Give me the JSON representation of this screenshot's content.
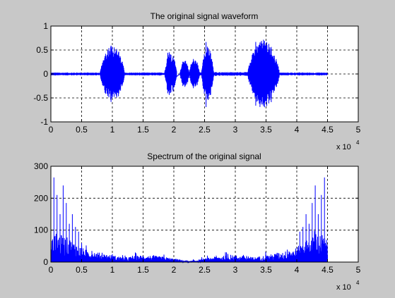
{
  "chart_data": [
    {
      "type": "line",
      "title": "The original signal waveform",
      "xlim": [
        0,
        5
      ],
      "ylim": [
        -1,
        1
      ],
      "x_multiplier_label": "x 10",
      "x_multiplier_exp": "4",
      "xticks": [
        "0",
        "0.5",
        "1",
        "1.5",
        "2",
        "2.5",
        "3",
        "3.5",
        "4",
        "4.5",
        "5"
      ],
      "yticks": [
        "-1",
        "-0.5",
        "0",
        "0.5",
        "1"
      ],
      "grid": true,
      "color": "#0000ff",
      "x_end": 4.5,
      "segments": [
        {
          "type": "hiss",
          "x0": 0.0,
          "x1": 0.8,
          "amp": 0.03
        },
        {
          "type": "burst",
          "x0": 0.8,
          "x1": 1.2,
          "amp": 0.62
        },
        {
          "type": "hiss",
          "x0": 1.2,
          "x1": 1.85,
          "amp": 0.03
        },
        {
          "type": "burst",
          "x0": 1.85,
          "x1": 2.05,
          "amp": 0.45
        },
        {
          "type": "burst",
          "x0": 2.1,
          "x1": 2.25,
          "amp": 0.3
        },
        {
          "type": "burst",
          "x0": 2.25,
          "x1": 2.42,
          "amp": 0.33
        },
        {
          "type": "hiss",
          "x0": 2.42,
          "x1": 2.45,
          "amp": 0.04
        },
        {
          "type": "burst",
          "x0": 2.45,
          "x1": 2.65,
          "amp": 0.58
        },
        {
          "type": "hiss",
          "x0": 2.65,
          "x1": 3.2,
          "amp": 0.04
        },
        {
          "type": "burst",
          "x0": 3.2,
          "x1": 3.72,
          "amp": 0.72
        },
        {
          "type": "hiss",
          "x0": 3.72,
          "x1": 4.5,
          "amp": 0.03
        }
      ]
    },
    {
      "type": "line",
      "title": "Spectrum of the original signal",
      "xlim": [
        0,
        5
      ],
      "ylim": [
        0,
        300
      ],
      "x_multiplier_label": "x 10",
      "x_multiplier_exp": "4",
      "xticks": [
        "0",
        "0.5",
        "1",
        "1.5",
        "2",
        "2.5",
        "3",
        "3.5",
        "4",
        "4.5",
        "5"
      ],
      "yticks": [
        "0",
        "100",
        "200",
        "300"
      ],
      "grid": true,
      "color": "#0000ff",
      "x_end": 4.5,
      "envelope": [
        [
          0,
          70
        ],
        [
          0.1,
          90
        ],
        [
          0.3,
          75
        ],
        [
          0.55,
          40
        ],
        [
          0.9,
          25
        ],
        [
          1.2,
          15
        ],
        [
          1.5,
          22
        ],
        [
          1.8,
          18
        ],
        [
          2.1,
          8
        ],
        [
          2.25,
          3
        ],
        [
          2.4,
          8
        ],
        [
          2.7,
          18
        ],
        [
          3.0,
          22
        ],
        [
          3.3,
          15
        ],
        [
          3.6,
          25
        ],
        [
          3.95,
          40
        ],
        [
          4.2,
          75
        ],
        [
          4.4,
          90
        ],
        [
          4.5,
          70
        ]
      ],
      "peaks": [
        [
          0.05,
          265
        ],
        [
          0.1,
          210
        ],
        [
          0.15,
          150
        ],
        [
          0.2,
          240
        ],
        [
          0.25,
          185
        ],
        [
          0.3,
          120
        ],
        [
          0.35,
          150
        ],
        [
          0.4,
          110
        ],
        [
          0.45,
          95
        ],
        [
          4.05,
          95
        ],
        [
          4.1,
          110
        ],
        [
          4.15,
          150
        ],
        [
          4.2,
          120
        ],
        [
          4.25,
          185
        ],
        [
          4.3,
          240
        ],
        [
          4.35,
          150
        ],
        [
          4.4,
          210
        ],
        [
          4.45,
          265
        ]
      ]
    }
  ]
}
